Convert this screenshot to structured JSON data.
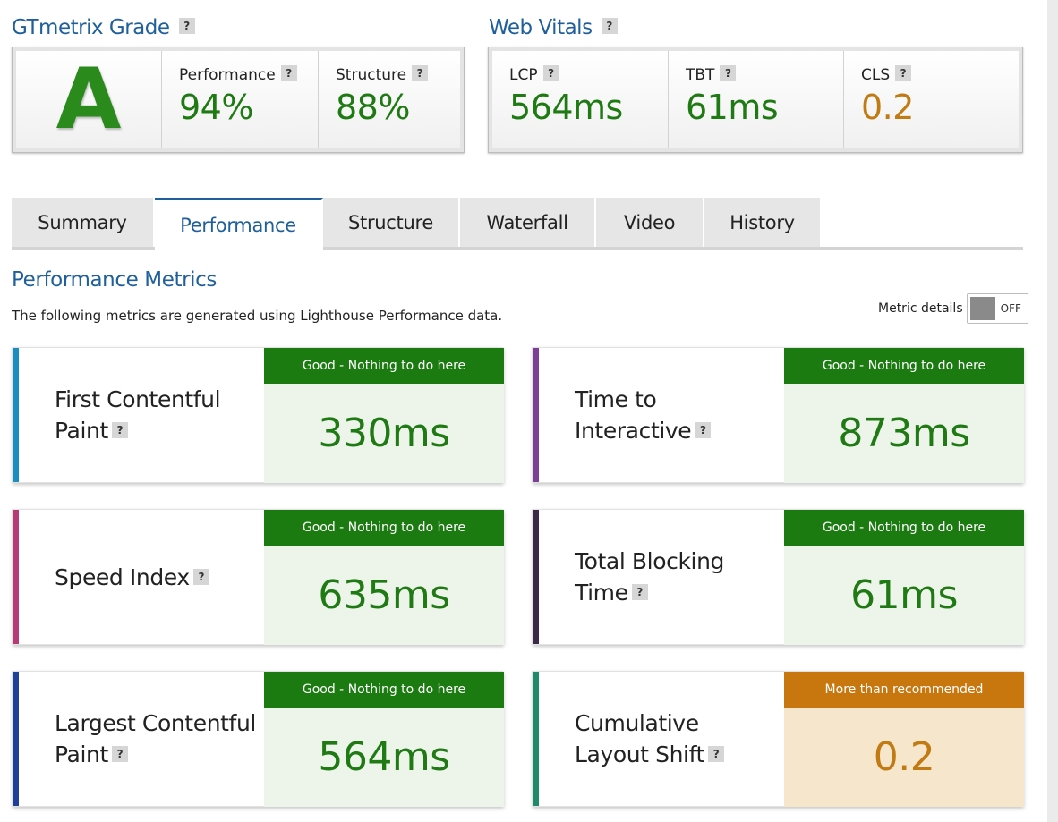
{
  "grade_panel": {
    "heading": "GTmetrix Grade",
    "grade": "A",
    "performance": {
      "label": "Performance",
      "value": "94%"
    },
    "structure": {
      "label": "Structure",
      "value": "88%"
    }
  },
  "vitals_panel": {
    "heading": "Web Vitals",
    "lcp": {
      "label": "LCP",
      "value": "564ms"
    },
    "tbt": {
      "label": "TBT",
      "value": "61ms"
    },
    "cls": {
      "label": "CLS",
      "value": "0.2"
    }
  },
  "help_glyph": "?",
  "tabs": [
    {
      "label": "Summary",
      "active": false
    },
    {
      "label": "Performance",
      "active": true
    },
    {
      "label": "Structure",
      "active": false
    },
    {
      "label": "Waterfall",
      "active": false
    },
    {
      "label": "Video",
      "active": false
    },
    {
      "label": "History",
      "active": false
    }
  ],
  "performance_metrics": {
    "title": "Performance Metrics",
    "description": "The following metrics are generated using Lighthouse Performance data.",
    "metric_details": {
      "label": "Metric details",
      "state": "OFF"
    },
    "metrics": [
      {
        "name_line1": "First Contentful",
        "name_line2": "Paint",
        "status": "Good - Nothing to do here",
        "value": "330ms",
        "accent": "#1b8dbe"
      },
      {
        "name_line1": "Time to",
        "name_line2": "Interactive",
        "status": "Good - Nothing to do here",
        "value": "873ms",
        "accent": "#7b3f98"
      },
      {
        "name_line1": "",
        "name_line2": "Speed Index",
        "status": "Good - Nothing to do here",
        "value": "635ms",
        "accent": "#b73a74"
      },
      {
        "name_line1": "Total Blocking",
        "name_line2": "Time",
        "status": "Good - Nothing to do here",
        "value": "61ms",
        "accent": "#3a2a48"
      },
      {
        "name_line1": "Largest Contentful",
        "name_line2": "Paint",
        "status": "Good - Nothing to do here",
        "value": "564ms",
        "accent": "#1f3f9a"
      },
      {
        "name_line1": "Cumulative",
        "name_line2": "Layout Shift",
        "status": "More than recommended",
        "value": "0.2",
        "accent": "#1f8a6a"
      }
    ]
  },
  "colors": {
    "good": "#1b7a10",
    "warn": "#c8760e",
    "heading_blue": "#1f5f9c"
  }
}
